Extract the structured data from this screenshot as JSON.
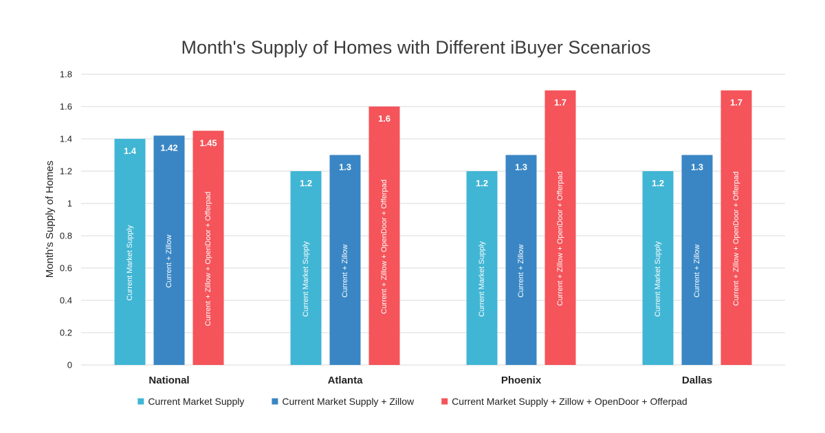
{
  "chart_data": {
    "type": "bar",
    "title": "Month's Supply of Homes with Different iBuyer Scenarios",
    "xlabel": "",
    "ylabel": "Month's Supply of Homes",
    "ylim": [
      0,
      1.8
    ],
    "yticks": [
      "0",
      "0.2",
      "0.4",
      "0.6",
      "0.8",
      "1",
      "1.2",
      "1.4",
      "1.6",
      "1.8"
    ],
    "grid": true,
    "legend_position": "bottom",
    "categories": [
      "National",
      "Atlanta",
      "Phoenix",
      "Dallas"
    ],
    "series": [
      {
        "name": "Current Market Supply",
        "bar_label": "Current Market Supply",
        "color": "#41b6d4",
        "values": [
          1.4,
          1.2,
          1.2,
          1.2
        ],
        "value_labels": [
          "1.4",
          "1.2",
          "1.2",
          "1.2"
        ]
      },
      {
        "name": "Current Market Supply + Zillow",
        "bar_label": "Current + Zillow",
        "color": "#3a86c4",
        "values": [
          1.42,
          1.3,
          1.3,
          1.3
        ],
        "value_labels": [
          "1.42",
          "1.3",
          "1.3",
          "1.3"
        ]
      },
      {
        "name": "Current Market Supply + Zillow + OpenDoor + Offerpad",
        "bar_label": "Current + Zillow + OpenDoor + Offerpad",
        "color": "#f4545a",
        "values": [
          1.45,
          1.6,
          1.7,
          1.7
        ],
        "value_labels": [
          "1.45",
          "1.6",
          "1.7",
          "1.7"
        ]
      }
    ]
  }
}
